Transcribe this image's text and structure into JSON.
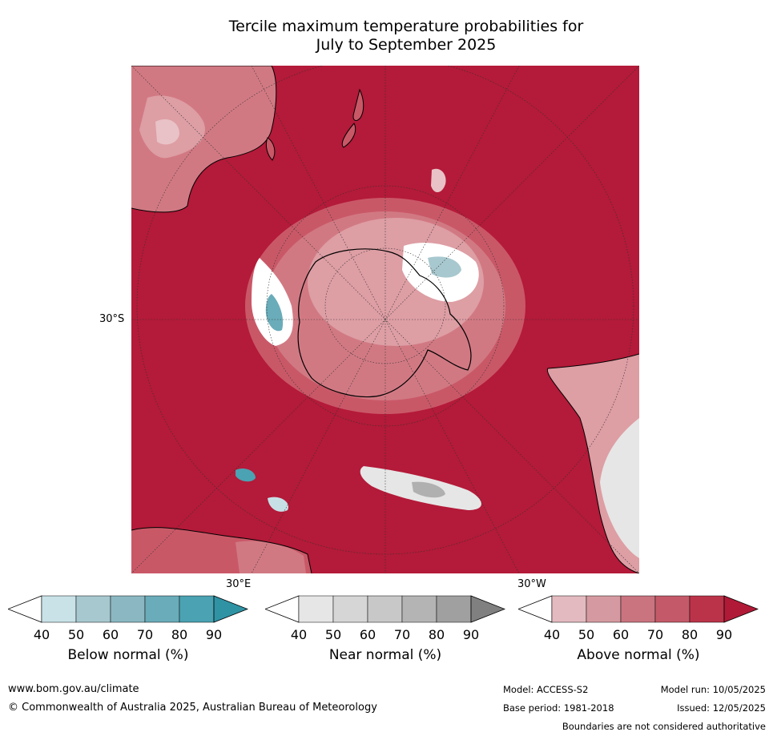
{
  "title": {
    "line1": "Tercile maximum temperature probabilities for",
    "line2": "July to September 2025"
  },
  "map": {
    "lat_label": "30°S",
    "lon_label_east": "30°E",
    "lon_label_west": "30°W",
    "colors": {
      "ocean_red": "#b41a39",
      "above_80": "#c12f4a",
      "above_70": "#c95867",
      "above_60": "#d17983",
      "above_50": "#dd9ea4",
      "above_40": "#e8c2c6",
      "near_40": "#e6e6e6",
      "near_70": "#b0b0b0",
      "below_40": "#c6e0e6",
      "below_70": "#4da6b7"
    }
  },
  "colorbars": [
    {
      "label": "Below normal (%)",
      "ticks": [
        "40",
        "50",
        "60",
        "70",
        "80",
        "90"
      ],
      "colors": [
        "#ffffff",
        "#c8e2e8",
        "#a8c8cf",
        "#8ab7c2",
        "#6aacb9",
        "#4aa2b2",
        "#2f93a4"
      ]
    },
    {
      "label": "Near normal (%)",
      "ticks": [
        "40",
        "50",
        "60",
        "70",
        "80",
        "90"
      ],
      "colors": [
        "#ffffff",
        "#e6e6e6",
        "#d6d6d6",
        "#c8c8c8",
        "#b4b4b4",
        "#a0a0a0",
        "#808080"
      ]
    },
    {
      "label": "Above normal (%)",
      "ticks": [
        "40",
        "50",
        "60",
        "70",
        "80",
        "90"
      ],
      "colors": [
        "#ffffff",
        "#e2babf",
        "#d59aa1",
        "#ca7480",
        "#c45a69",
        "#bb3349",
        "#b11a37"
      ]
    }
  ],
  "footer": {
    "url": "www.bom.gov.au/climate",
    "copyright": "© Commonwealth of Australia 2025, Australian Bureau of Meteorology",
    "model": "Model: ACCESS-S2",
    "model_run": "Model run: 10/05/2025",
    "base_period": "Base period: 1981-2018",
    "issued": "Issued: 12/05/2025",
    "disclaimer": "Boundaries are not considered authoritative"
  }
}
